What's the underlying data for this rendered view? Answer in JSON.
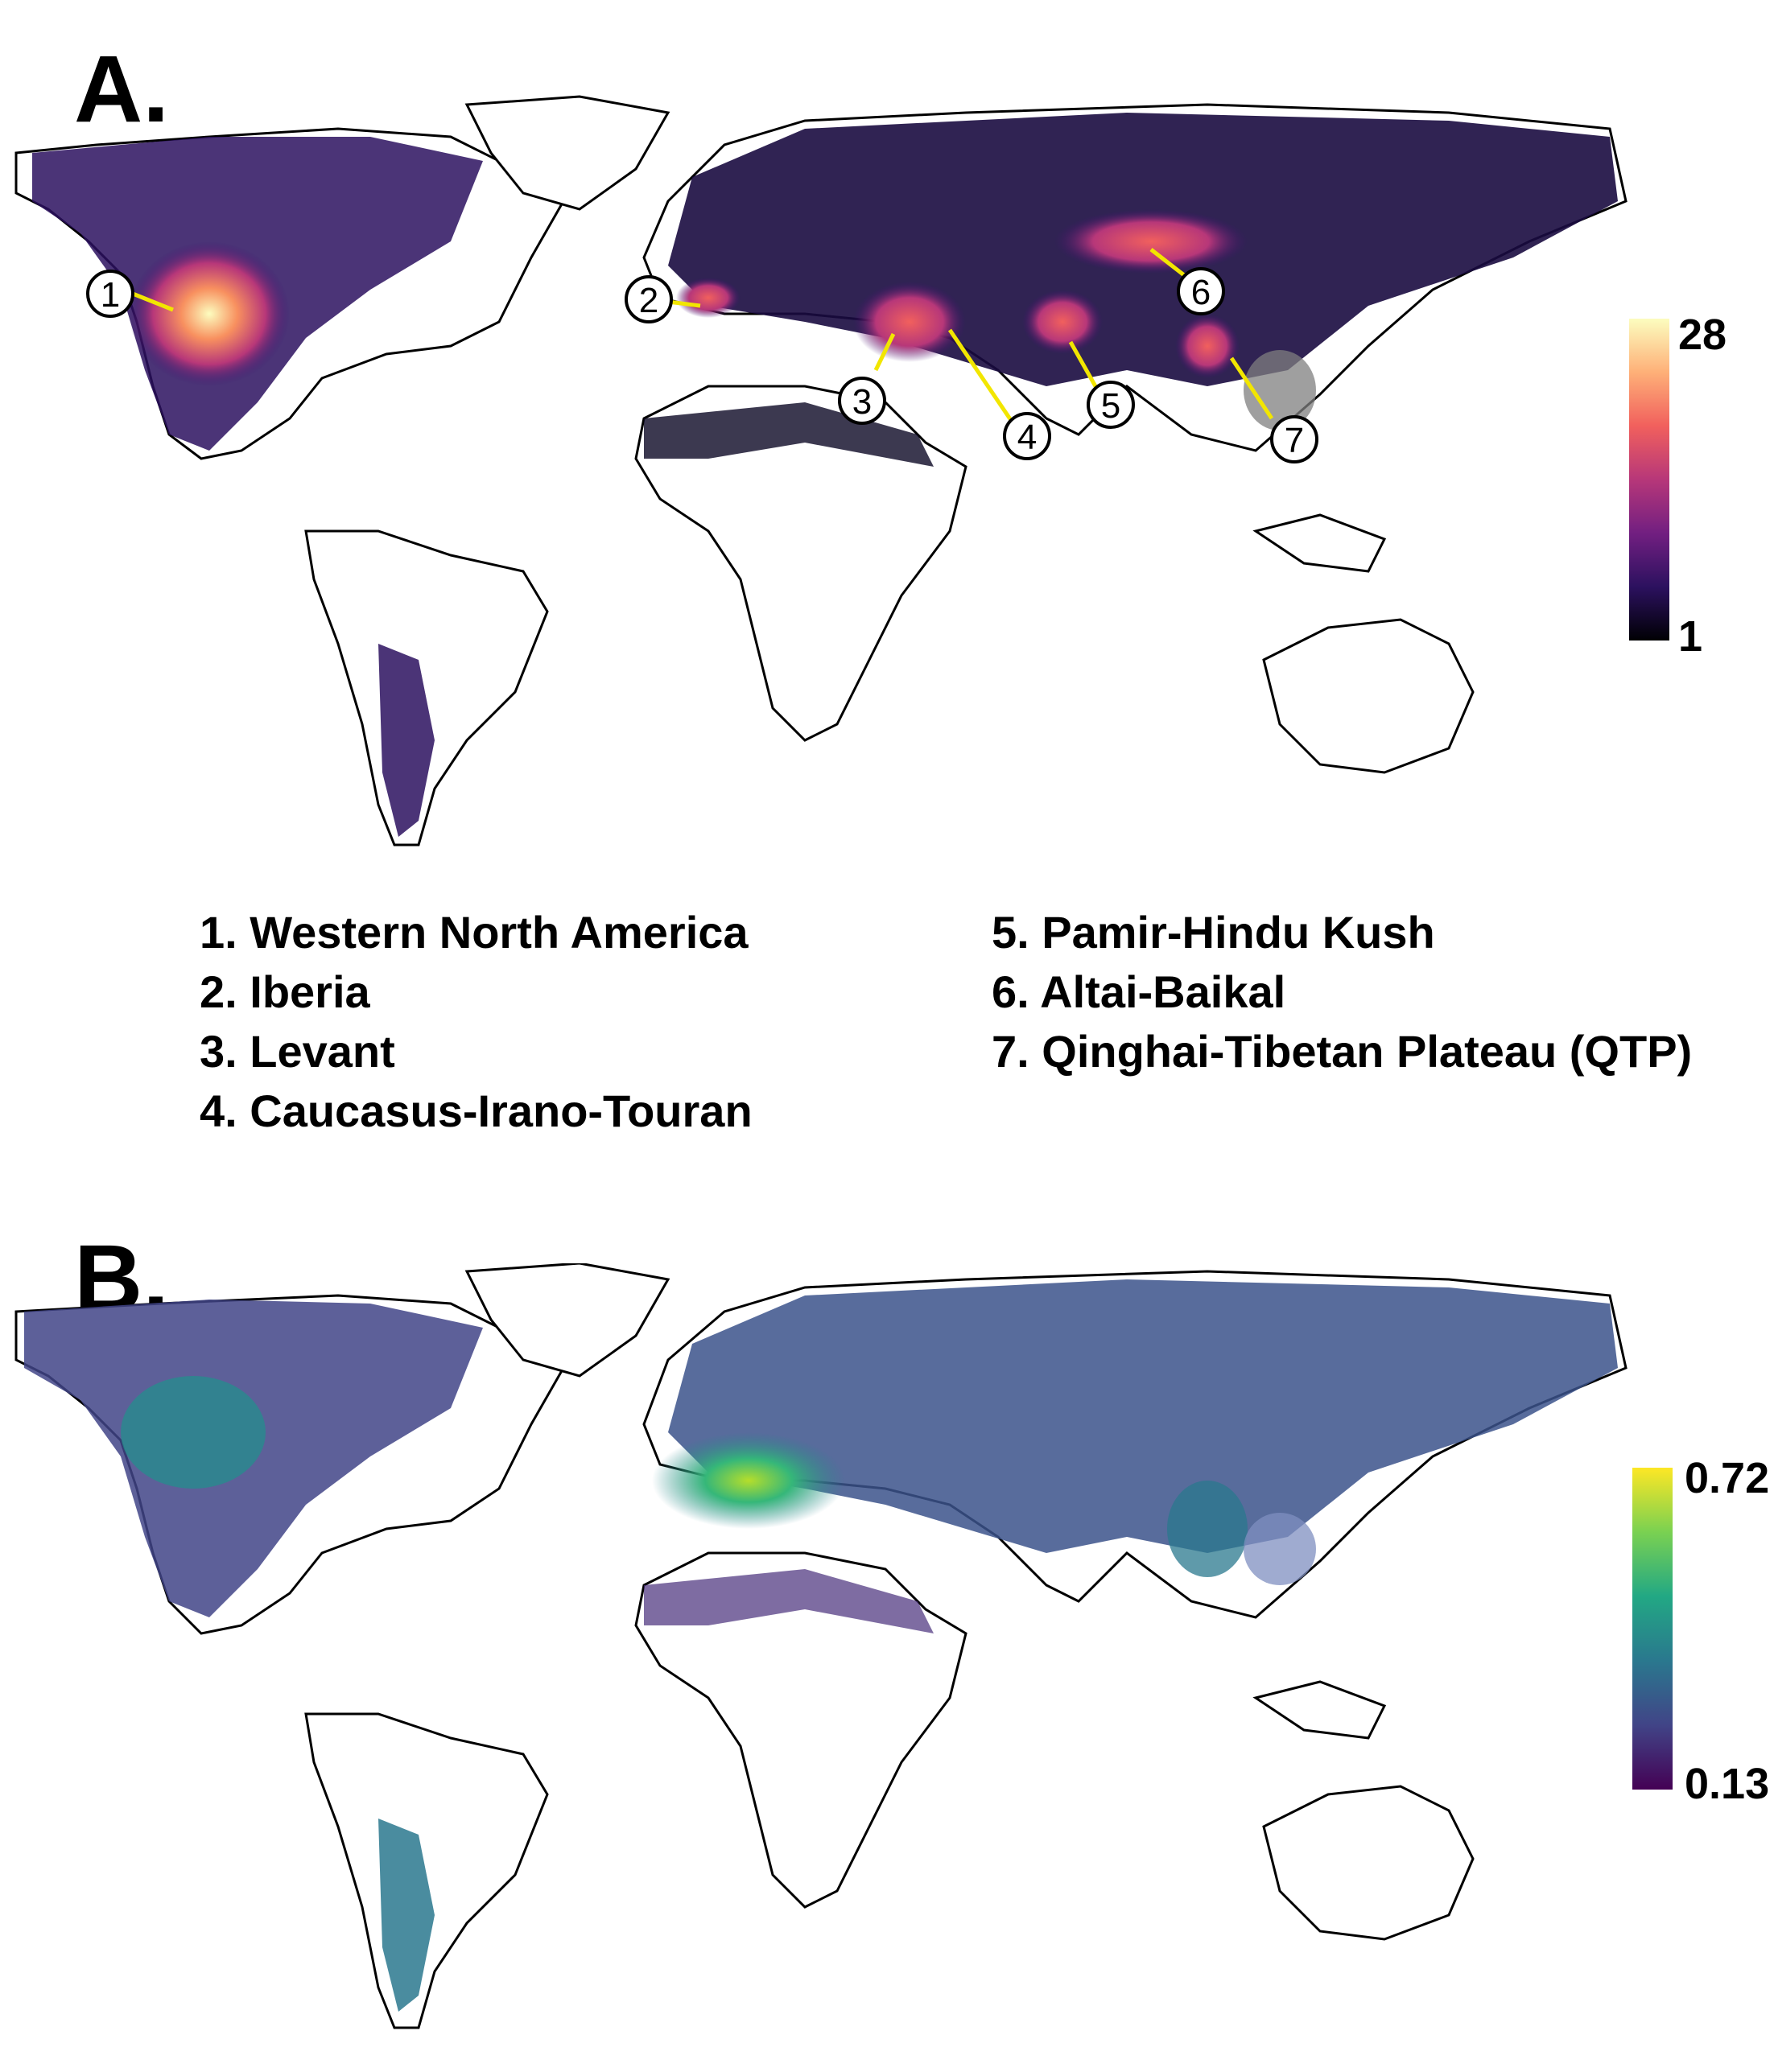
{
  "panel_a": {
    "letter": "A.",
    "colorbar": {
      "max_label": "28",
      "min_label": "1",
      "colors": [
        "#fcfdbf",
        "#feb078",
        "#f1605d",
        "#b73779",
        "#721f81",
        "#2c115f",
        "#000004"
      ]
    },
    "callouts": [
      "1",
      "2",
      "3",
      "4",
      "5",
      "6",
      "7"
    ],
    "callout_line_color": "#f2e600"
  },
  "legend": {
    "left": [
      "1. Western North America",
      "2. Iberia",
      "3. Levant",
      "4. Caucasus-Irano-Touran"
    ],
    "right": [
      "5. Pamir-Hindu Kush",
      "6. Altai-Baikal",
      "7. Qinghai-Tibetan Plateau (QTP)"
    ]
  },
  "panel_b": {
    "letter": "B.",
    "colorbar": {
      "max_label": "0.72",
      "min_label": "0.13",
      "colors": [
        "#fde725",
        "#7ad151",
        "#22a884",
        "#2a788e",
        "#414487",
        "#440154"
      ]
    }
  }
}
